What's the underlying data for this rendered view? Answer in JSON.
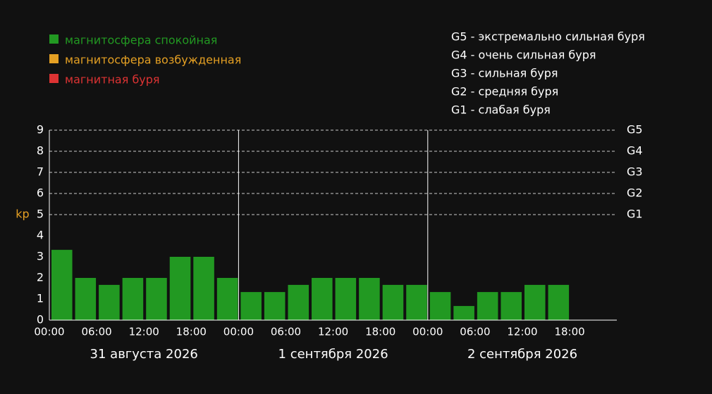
{
  "legend": [
    {
      "label": "магнитосфера спокойная",
      "color": "#229922"
    },
    {
      "label": "магнитосфера возбужденная",
      "color": "#e5a023"
    },
    {
      "label": "магнитная буря",
      "color": "#dd3333"
    }
  ],
  "storm_scale": [
    "G5 - экстремально сильная буря",
    "G4 - очень сильная буря",
    "G3 - сильная буря",
    "G2 - средняя буря",
    "G1 - слабая буря"
  ],
  "chart_data": {
    "type": "bar",
    "ylabel": "kp",
    "ylim": [
      0,
      9
    ],
    "yticks": [
      0,
      1,
      2,
      3,
      4,
      5,
      6,
      7,
      8,
      9
    ],
    "grid_levels": [
      {
        "value": 9,
        "label": "G5"
      },
      {
        "value": 8,
        "label": "G4"
      },
      {
        "value": 7,
        "label": "G3"
      },
      {
        "value": 6,
        "label": "G2"
      },
      {
        "value": 5,
        "label": "G1"
      }
    ],
    "xtick_labels": [
      "00:00",
      "06:00",
      "12:00",
      "18:00",
      "00:00",
      "06:00",
      "12:00",
      "18:00",
      "00:00",
      "06:00",
      "12:00",
      "18:00"
    ],
    "days": [
      "31 августа 2026",
      "1 сентября 2026",
      "2 сентября 2026"
    ],
    "slots_per_day": 8,
    "bar_color": "#229922",
    "values": [
      3.33,
      2.0,
      1.67,
      2.0,
      2.0,
      3.0,
      3.0,
      2.0,
      1.33,
      1.33,
      1.67,
      2.0,
      2.0,
      2.0,
      1.67,
      1.67,
      1.33,
      0.67,
      1.33,
      1.33,
      1.67,
      1.67
    ]
  },
  "colors": {
    "background": "#111111",
    "text": "#ffffff",
    "ylabel": "#e5a023",
    "grid": "#cccccc"
  }
}
